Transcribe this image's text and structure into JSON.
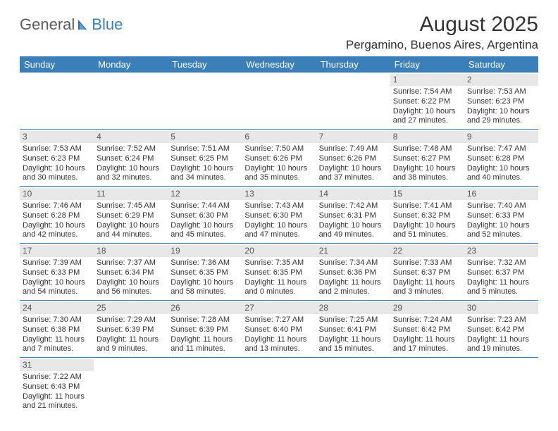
{
  "brand": {
    "word1": "General",
    "word2": "Blue"
  },
  "title": "August 2025",
  "location": "Pergamino, Buenos Aires, Argentina",
  "colors": {
    "header_bg": "#3a7fb8",
    "header_text": "#ffffff",
    "daynum_bg": "#e8e8e8",
    "border": "#3a7fb8",
    "text": "#333333",
    "page_bg": "#ffffff"
  },
  "weekdays": [
    "Sunday",
    "Monday",
    "Tuesday",
    "Wednesday",
    "Thursday",
    "Friday",
    "Saturday"
  ],
  "weeks": [
    [
      null,
      null,
      null,
      null,
      null,
      {
        "d": "1",
        "sr": "Sunrise: 7:54 AM",
        "ss": "Sunset: 6:22 PM",
        "dl1": "Daylight: 10 hours",
        "dl2": "and 27 minutes."
      },
      {
        "d": "2",
        "sr": "Sunrise: 7:53 AM",
        "ss": "Sunset: 6:23 PM",
        "dl1": "Daylight: 10 hours",
        "dl2": "and 29 minutes."
      }
    ],
    [
      {
        "d": "3",
        "sr": "Sunrise: 7:53 AM",
        "ss": "Sunset: 6:23 PM",
        "dl1": "Daylight: 10 hours",
        "dl2": "and 30 minutes."
      },
      {
        "d": "4",
        "sr": "Sunrise: 7:52 AM",
        "ss": "Sunset: 6:24 PM",
        "dl1": "Daylight: 10 hours",
        "dl2": "and 32 minutes."
      },
      {
        "d": "5",
        "sr": "Sunrise: 7:51 AM",
        "ss": "Sunset: 6:25 PM",
        "dl1": "Daylight: 10 hours",
        "dl2": "and 34 minutes."
      },
      {
        "d": "6",
        "sr": "Sunrise: 7:50 AM",
        "ss": "Sunset: 6:26 PM",
        "dl1": "Daylight: 10 hours",
        "dl2": "and 35 minutes."
      },
      {
        "d": "7",
        "sr": "Sunrise: 7:49 AM",
        "ss": "Sunset: 6:26 PM",
        "dl1": "Daylight: 10 hours",
        "dl2": "and 37 minutes."
      },
      {
        "d": "8",
        "sr": "Sunrise: 7:48 AM",
        "ss": "Sunset: 6:27 PM",
        "dl1": "Daylight: 10 hours",
        "dl2": "and 38 minutes."
      },
      {
        "d": "9",
        "sr": "Sunrise: 7:47 AM",
        "ss": "Sunset: 6:28 PM",
        "dl1": "Daylight: 10 hours",
        "dl2": "and 40 minutes."
      }
    ],
    [
      {
        "d": "10",
        "sr": "Sunrise: 7:46 AM",
        "ss": "Sunset: 6:28 PM",
        "dl1": "Daylight: 10 hours",
        "dl2": "and 42 minutes."
      },
      {
        "d": "11",
        "sr": "Sunrise: 7:45 AM",
        "ss": "Sunset: 6:29 PM",
        "dl1": "Daylight: 10 hours",
        "dl2": "and 44 minutes."
      },
      {
        "d": "12",
        "sr": "Sunrise: 7:44 AM",
        "ss": "Sunset: 6:30 PM",
        "dl1": "Daylight: 10 hours",
        "dl2": "and 45 minutes."
      },
      {
        "d": "13",
        "sr": "Sunrise: 7:43 AM",
        "ss": "Sunset: 6:30 PM",
        "dl1": "Daylight: 10 hours",
        "dl2": "and 47 minutes."
      },
      {
        "d": "14",
        "sr": "Sunrise: 7:42 AM",
        "ss": "Sunset: 6:31 PM",
        "dl1": "Daylight: 10 hours",
        "dl2": "and 49 minutes."
      },
      {
        "d": "15",
        "sr": "Sunrise: 7:41 AM",
        "ss": "Sunset: 6:32 PM",
        "dl1": "Daylight: 10 hours",
        "dl2": "and 51 minutes."
      },
      {
        "d": "16",
        "sr": "Sunrise: 7:40 AM",
        "ss": "Sunset: 6:33 PM",
        "dl1": "Daylight: 10 hours",
        "dl2": "and 52 minutes."
      }
    ],
    [
      {
        "d": "17",
        "sr": "Sunrise: 7:39 AM",
        "ss": "Sunset: 6:33 PM",
        "dl1": "Daylight: 10 hours",
        "dl2": "and 54 minutes."
      },
      {
        "d": "18",
        "sr": "Sunrise: 7:37 AM",
        "ss": "Sunset: 6:34 PM",
        "dl1": "Daylight: 10 hours",
        "dl2": "and 56 minutes."
      },
      {
        "d": "19",
        "sr": "Sunrise: 7:36 AM",
        "ss": "Sunset: 6:35 PM",
        "dl1": "Daylight: 10 hours",
        "dl2": "and 58 minutes."
      },
      {
        "d": "20",
        "sr": "Sunrise: 7:35 AM",
        "ss": "Sunset: 6:35 PM",
        "dl1": "Daylight: 11 hours",
        "dl2": "and 0 minutes."
      },
      {
        "d": "21",
        "sr": "Sunrise: 7:34 AM",
        "ss": "Sunset: 6:36 PM",
        "dl1": "Daylight: 11 hours",
        "dl2": "and 2 minutes."
      },
      {
        "d": "22",
        "sr": "Sunrise: 7:33 AM",
        "ss": "Sunset: 6:37 PM",
        "dl1": "Daylight: 11 hours",
        "dl2": "and 3 minutes."
      },
      {
        "d": "23",
        "sr": "Sunrise: 7:32 AM",
        "ss": "Sunset: 6:37 PM",
        "dl1": "Daylight: 11 hours",
        "dl2": "and 5 minutes."
      }
    ],
    [
      {
        "d": "24",
        "sr": "Sunrise: 7:30 AM",
        "ss": "Sunset: 6:38 PM",
        "dl1": "Daylight: 11 hours",
        "dl2": "and 7 minutes."
      },
      {
        "d": "25",
        "sr": "Sunrise: 7:29 AM",
        "ss": "Sunset: 6:39 PM",
        "dl1": "Daylight: 11 hours",
        "dl2": "and 9 minutes."
      },
      {
        "d": "26",
        "sr": "Sunrise: 7:28 AM",
        "ss": "Sunset: 6:39 PM",
        "dl1": "Daylight: 11 hours",
        "dl2": "and 11 minutes."
      },
      {
        "d": "27",
        "sr": "Sunrise: 7:27 AM",
        "ss": "Sunset: 6:40 PM",
        "dl1": "Daylight: 11 hours",
        "dl2": "and 13 minutes."
      },
      {
        "d": "28",
        "sr": "Sunrise: 7:25 AM",
        "ss": "Sunset: 6:41 PM",
        "dl1": "Daylight: 11 hours",
        "dl2": "and 15 minutes."
      },
      {
        "d": "29",
        "sr": "Sunrise: 7:24 AM",
        "ss": "Sunset: 6:42 PM",
        "dl1": "Daylight: 11 hours",
        "dl2": "and 17 minutes."
      },
      {
        "d": "30",
        "sr": "Sunrise: 7:23 AM",
        "ss": "Sunset: 6:42 PM",
        "dl1": "Daylight: 11 hours",
        "dl2": "and 19 minutes."
      }
    ],
    [
      {
        "d": "31",
        "sr": "Sunrise: 7:22 AM",
        "ss": "Sunset: 6:43 PM",
        "dl1": "Daylight: 11 hours",
        "dl2": "and 21 minutes."
      },
      null,
      null,
      null,
      null,
      null,
      null
    ]
  ]
}
